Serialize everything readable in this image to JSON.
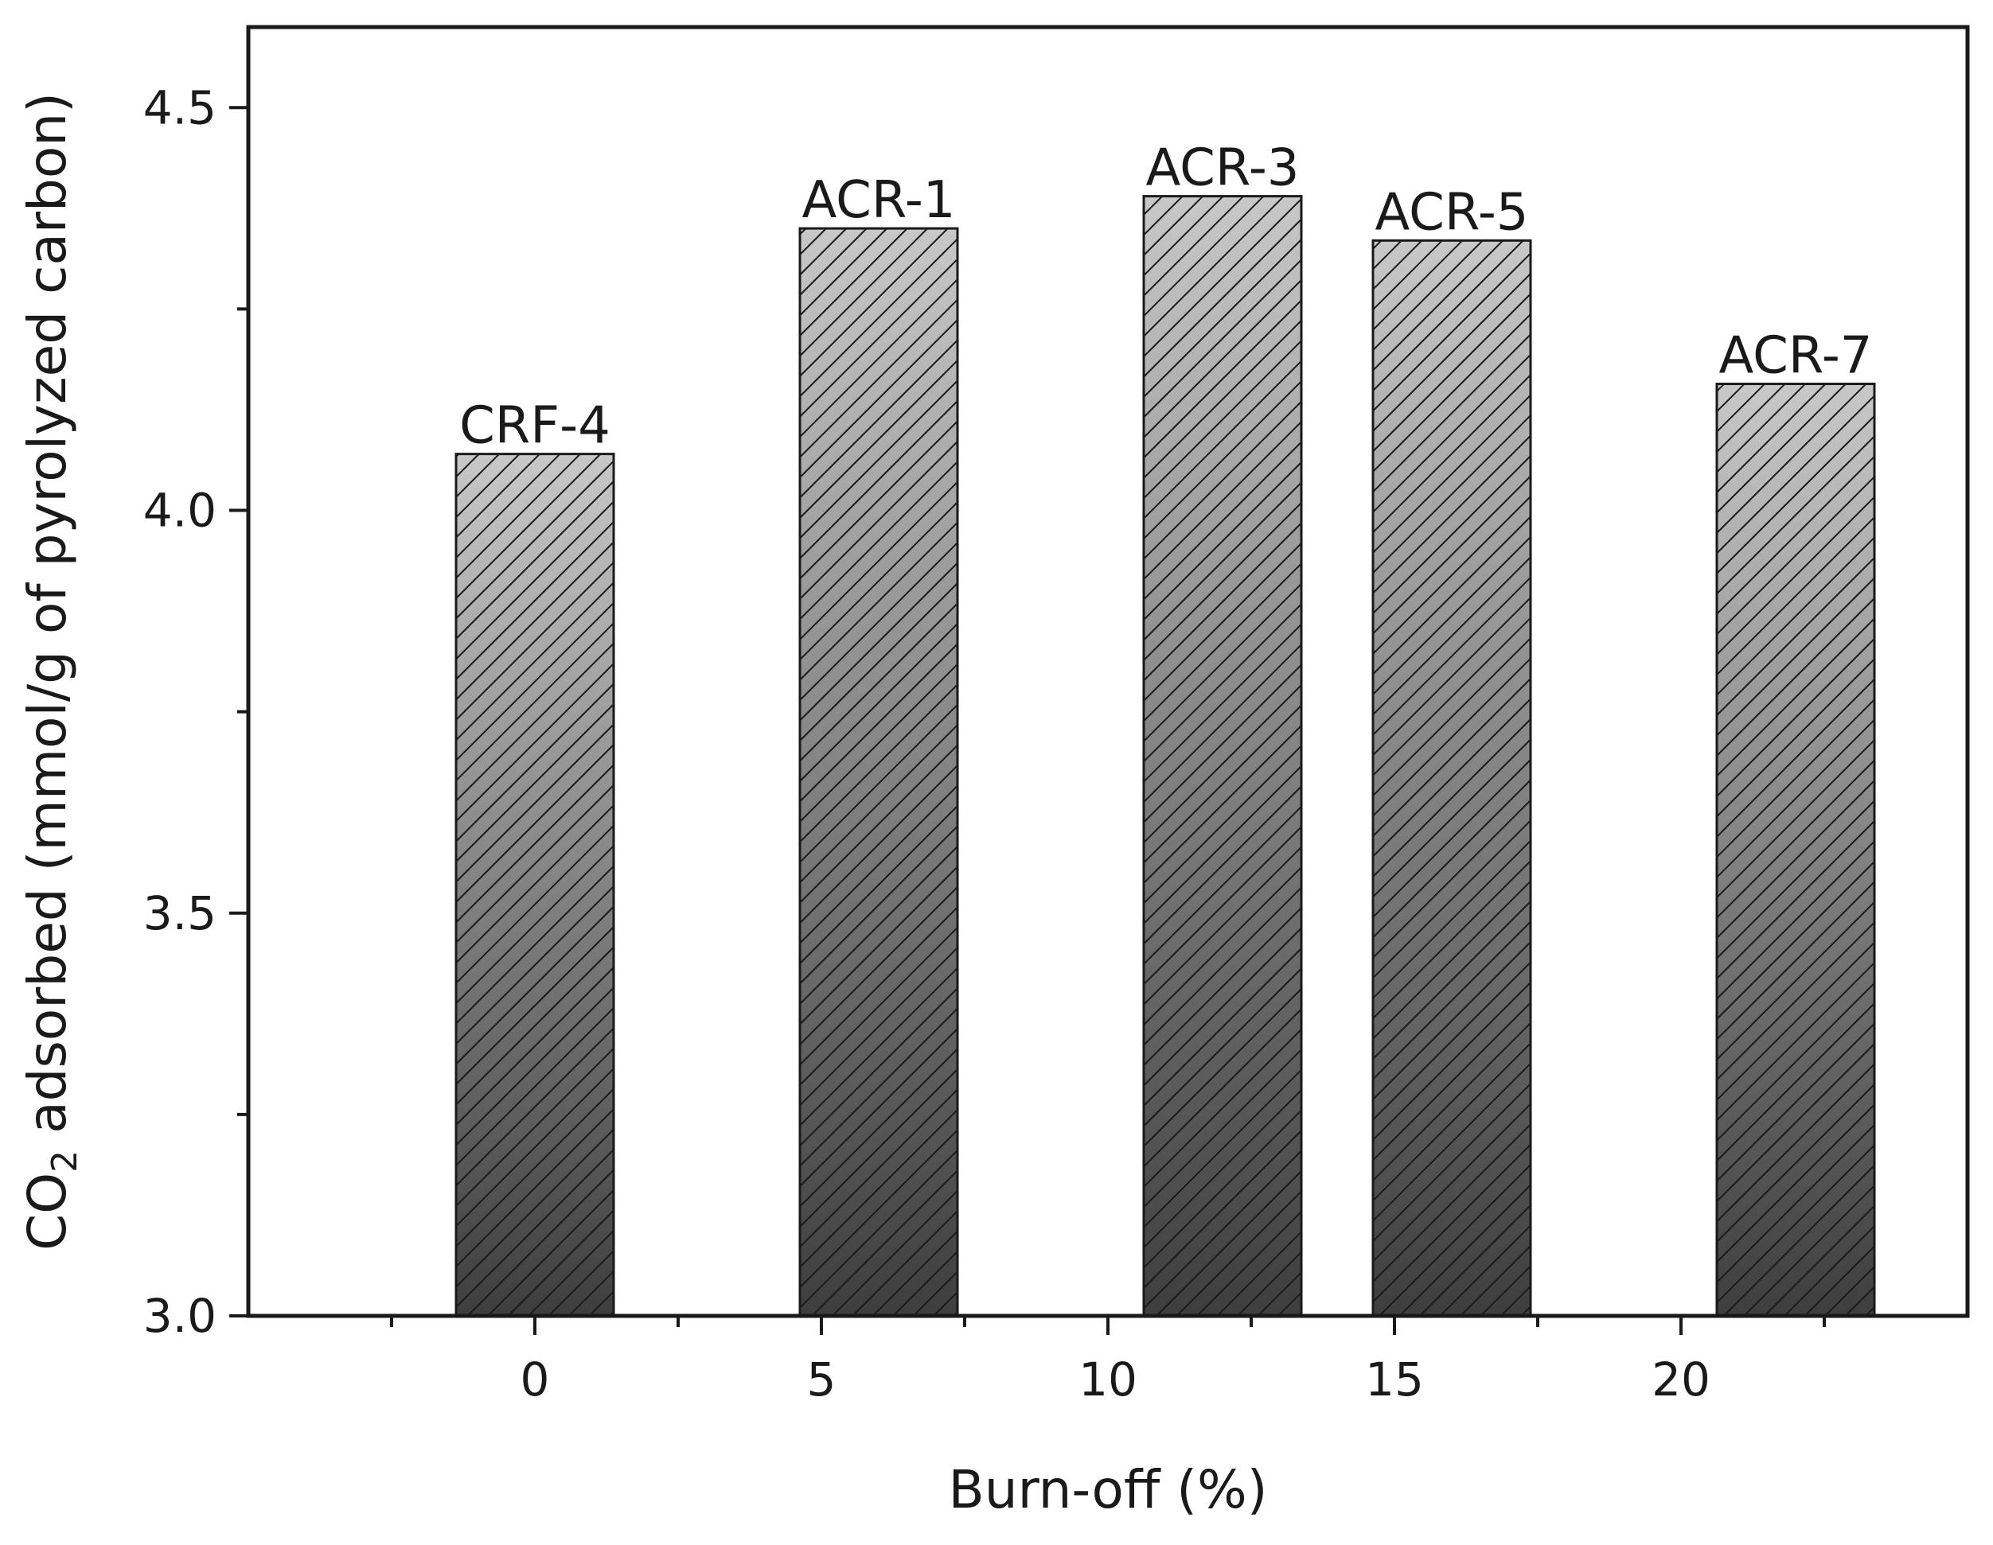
{
  "chart_data": {
    "type": "bar",
    "title": "",
    "xlabel": "Burn-off (%)",
    "ylabel_parts": {
      "prefix": "CO",
      "subscript": "2",
      "suffix": " adsorbed (mmol/g of pyrolyzed carbon)"
    },
    "xlim": [
      -5,
      25
    ],
    "ylim": [
      3.0,
      4.6
    ],
    "x_ticks": [
      0,
      5,
      10,
      15,
      20
    ],
    "x_tick_labels": [
      "0",
      "5",
      "10",
      "15",
      "20"
    ],
    "x_minor_ticks": [
      -2.5,
      2.5,
      7.5,
      12.5,
      17.5,
      22.5
    ],
    "y_ticks": [
      3.0,
      3.5,
      4.0,
      4.5
    ],
    "y_tick_labels": [
      "3.0",
      "3.5",
      "4.0",
      "4.5"
    ],
    "y_minor_ticks": [
      3.25,
      3.75,
      4.25
    ],
    "bar_width": 2.75,
    "bars": [
      {
        "label": "CRF-4",
        "x": 0,
        "value": 4.07
      },
      {
        "label": "ACR-1",
        "x": 6,
        "value": 4.35
      },
      {
        "label": "ACR-3",
        "x": 12,
        "value": 4.39
      },
      {
        "label": "ACR-5",
        "x": 16,
        "value": 4.335
      },
      {
        "label": "ACR-7",
        "x": 22,
        "value": 4.157
      }
    ],
    "bar_fill_top": "#c8c8c8",
    "bar_fill_bottom": "#3e3e3e",
    "hatch_color": "#1a1a1a",
    "grid": false,
    "legend": "none"
  }
}
